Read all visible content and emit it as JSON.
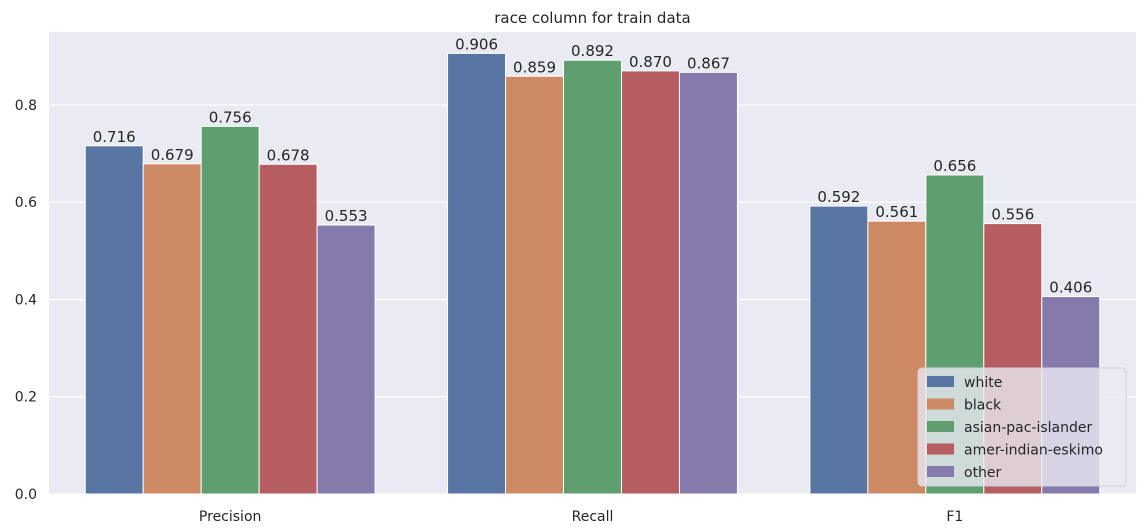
{
  "chart_data": {
    "type": "bar",
    "title": "race column for train data",
    "xlabel": "",
    "ylabel": "",
    "categories": [
      "Precision",
      "Recall",
      "F1"
    ],
    "series": [
      {
        "name": "white",
        "color": "#5875a4",
        "values": [
          0.716,
          0.906,
          0.592
        ],
        "labels": [
          "0.716",
          "0.906",
          "0.592"
        ]
      },
      {
        "name": "black",
        "color": "#cc8963",
        "values": [
          0.679,
          0.859,
          0.561
        ],
        "labels": [
          "0.679",
          "0.859",
          "0.561"
        ]
      },
      {
        "name": "asian-pac-islander",
        "color": "#5f9e6e",
        "values": [
          0.756,
          0.892,
          0.656
        ],
        "labels": [
          "0.756",
          "0.892",
          "0.656"
        ]
      },
      {
        "name": "amer-indian-eskimo",
        "color": "#b55d60",
        "values": [
          0.678,
          0.87,
          0.556
        ],
        "labels": [
          "0.678",
          "0.870",
          "0.556"
        ]
      },
      {
        "name": "other",
        "color": "#857aab",
        "values": [
          0.553,
          0.867,
          0.406
        ],
        "labels": [
          "0.553",
          "0.867",
          "0.406"
        ]
      }
    ],
    "yticks": [
      "0.0",
      "0.2",
      "0.4",
      "0.6",
      "0.8"
    ],
    "ytick_values": [
      0.0,
      0.2,
      0.4,
      0.6,
      0.8
    ],
    "ylim": [
      0,
      0.95
    ],
    "grid": true,
    "background": "#eaeaf2",
    "legend_position": "lower-right"
  }
}
